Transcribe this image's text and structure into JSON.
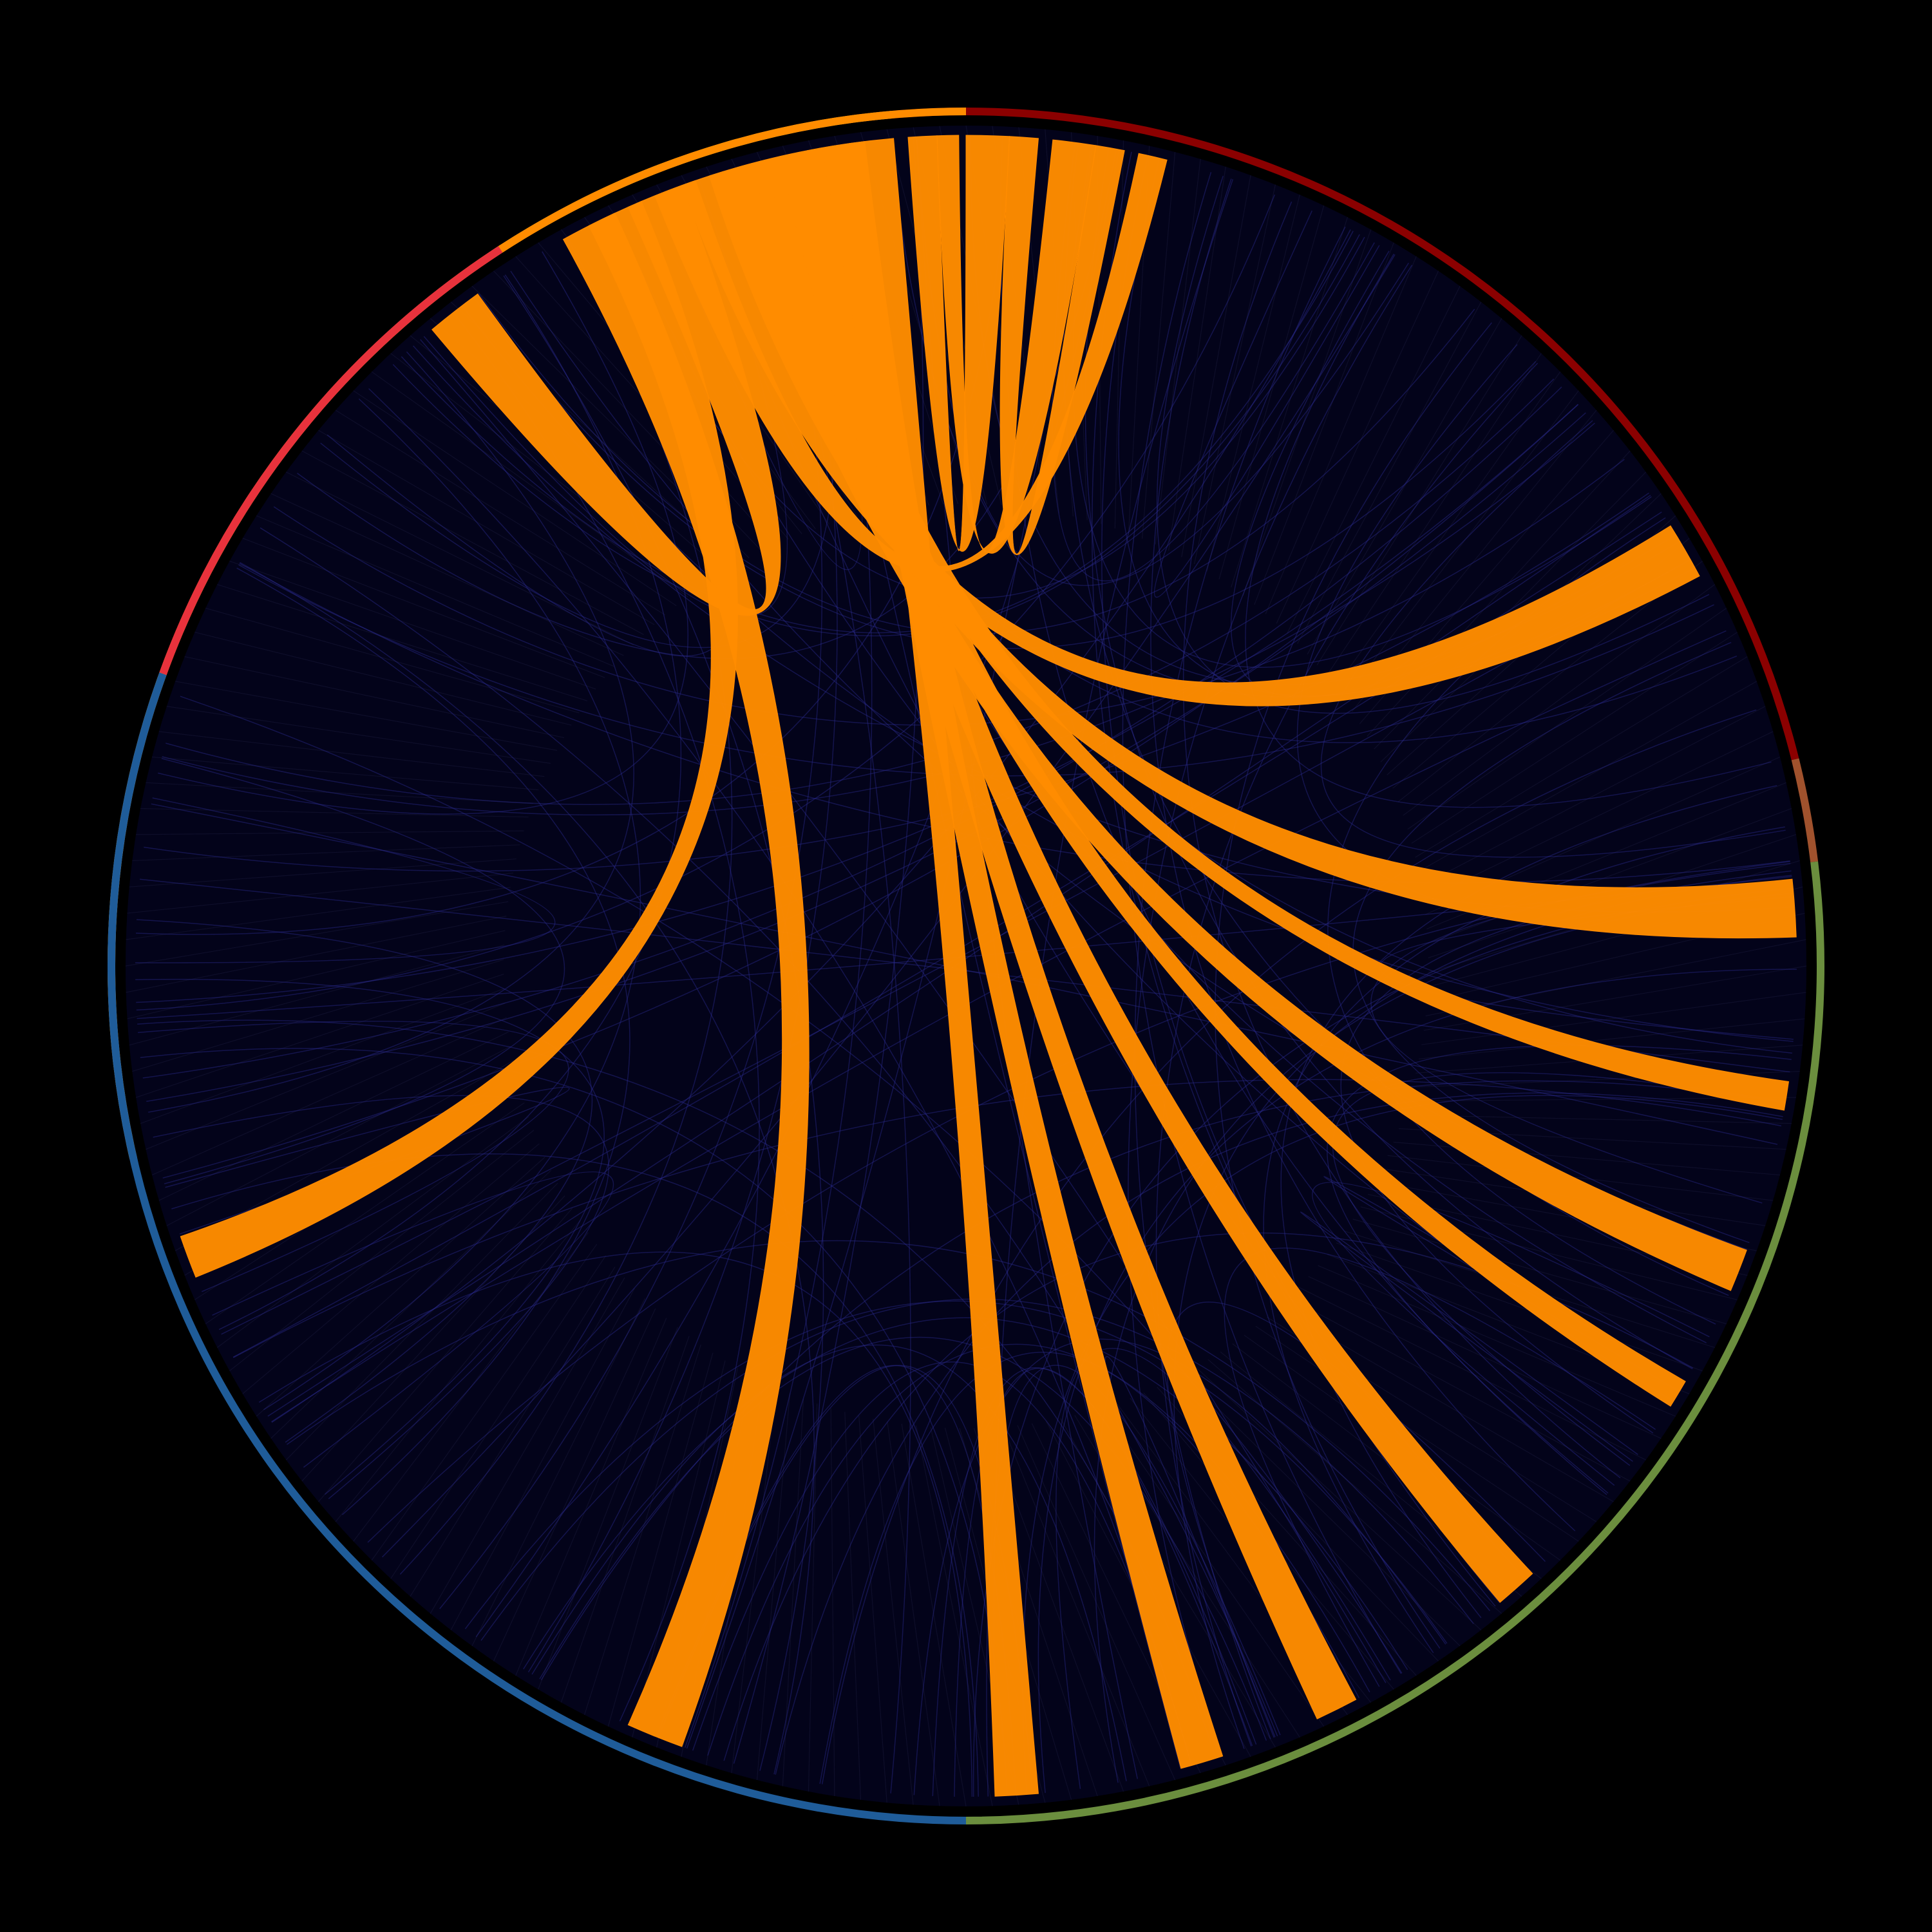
{
  "background": "#000000",
  "chart_data": {
    "type": "chord",
    "title": "",
    "colors": {
      "background": "#000000",
      "disc_fill": "#03031a",
      "highlight_chord": "#ff8c00",
      "background_chord": "#2a2a8c"
    },
    "groups": [
      {
        "color": "#f5a623",
        "start_deg": -103,
        "end_deg": -5
      },
      {
        "color": "#8b0000",
        "start_deg": -5,
        "end_deg": 76
      },
      {
        "color": "#a0522d",
        "start_deg": 76,
        "end_deg": 83
      },
      {
        "color": "#6b8e3e",
        "start_deg": 83,
        "end_deg": 180
      },
      {
        "color": "#1f5c99",
        "start_deg": 180,
        "end_deg": 290
      },
      {
        "color": "#e8323c",
        "start_deg": 290,
        "end_deg": 327
      },
      {
        "color": "#ff8c00",
        "start_deg": 327,
        "end_deg": 360
      }
    ],
    "segment_count": 200,
    "highlighted_chords": [
      {
        "a_start": 343,
        "a_end": 346,
        "b_start": 110,
        "b_end": 113
      },
      {
        "a_start": 345,
        "a_end": 348,
        "b_start": 98,
        "b_end": 100
      },
      {
        "a_start": 346,
        "a_end": 349,
        "b_start": 120,
        "b_end": 122
      },
      {
        "a_start": 347,
        "a_end": 350,
        "b_start": 137,
        "b_end": 140
      },
      {
        "a_start": 349,
        "a_end": 352,
        "b_start": 152,
        "b_end": 155
      },
      {
        "a_start": 350,
        "a_end": 353,
        "b_start": 162,
        "b_end": 165
      },
      {
        "a_start": 352,
        "a_end": 355,
        "b_start": 175,
        "b_end": 178
      },
      {
        "a_start": 331,
        "a_end": 335,
        "b_start": 200,
        "b_end": 204
      },
      {
        "a_start": 333,
        "a_end": 337,
        "b_start": 248,
        "b_end": 251
      },
      {
        "a_start": 356,
        "a_end": 358,
        "b_start": 0,
        "b_end": 3
      },
      {
        "a_start": 358,
        "a_end": 359.5,
        "b_start": 6,
        "b_end": 9
      },
      {
        "a_start": 320,
        "a_end": 324,
        "b_start": 336,
        "b_end": 340
      },
      {
        "a_start": 3,
        "a_end": 5,
        "b_start": 9,
        "b_end": 11
      },
      {
        "a_start": 338,
        "a_end": 341,
        "b_start": 12,
        "b_end": 14
      },
      {
        "a_start": 340,
        "a_end": 343,
        "b_start": 58,
        "b_end": 62
      },
      {
        "a_start": 342,
        "a_end": 345,
        "b_start": 84,
        "b_end": 88
      }
    ],
    "background_chord_count": 140,
    "legend": "none",
    "grid": false
  }
}
